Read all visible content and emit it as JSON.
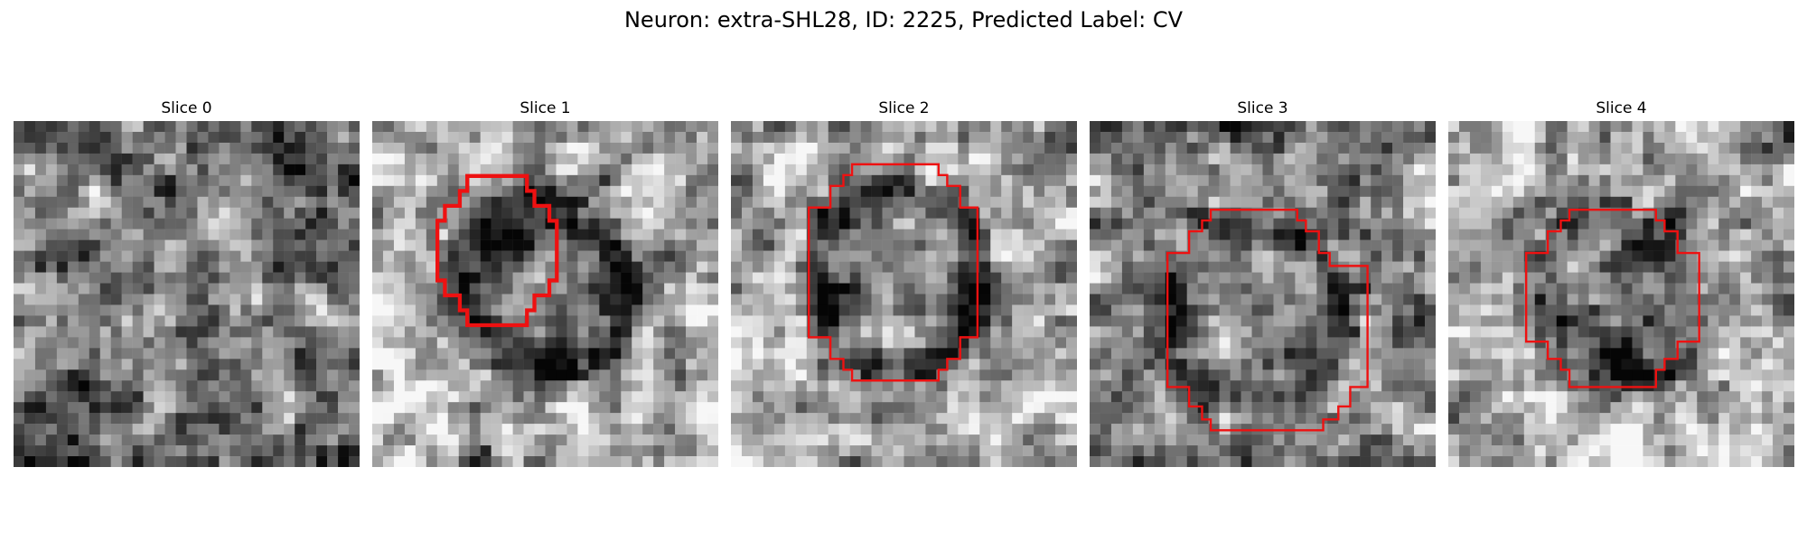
{
  "figure": {
    "title": "Neuron: extra-SHL28, ID: 2225, Predicted Label: CV",
    "contour_color": "#ee1111",
    "colormap": "gray"
  },
  "panels": [
    {
      "title": "Slice 0",
      "has_contour": false
    },
    {
      "title": "Slice 1",
      "has_contour": true
    },
    {
      "title": "Slice 2",
      "has_contour": true
    },
    {
      "title": "Slice 3",
      "has_contour": true
    },
    {
      "title": "Slice 4",
      "has_contour": true
    }
  ]
}
